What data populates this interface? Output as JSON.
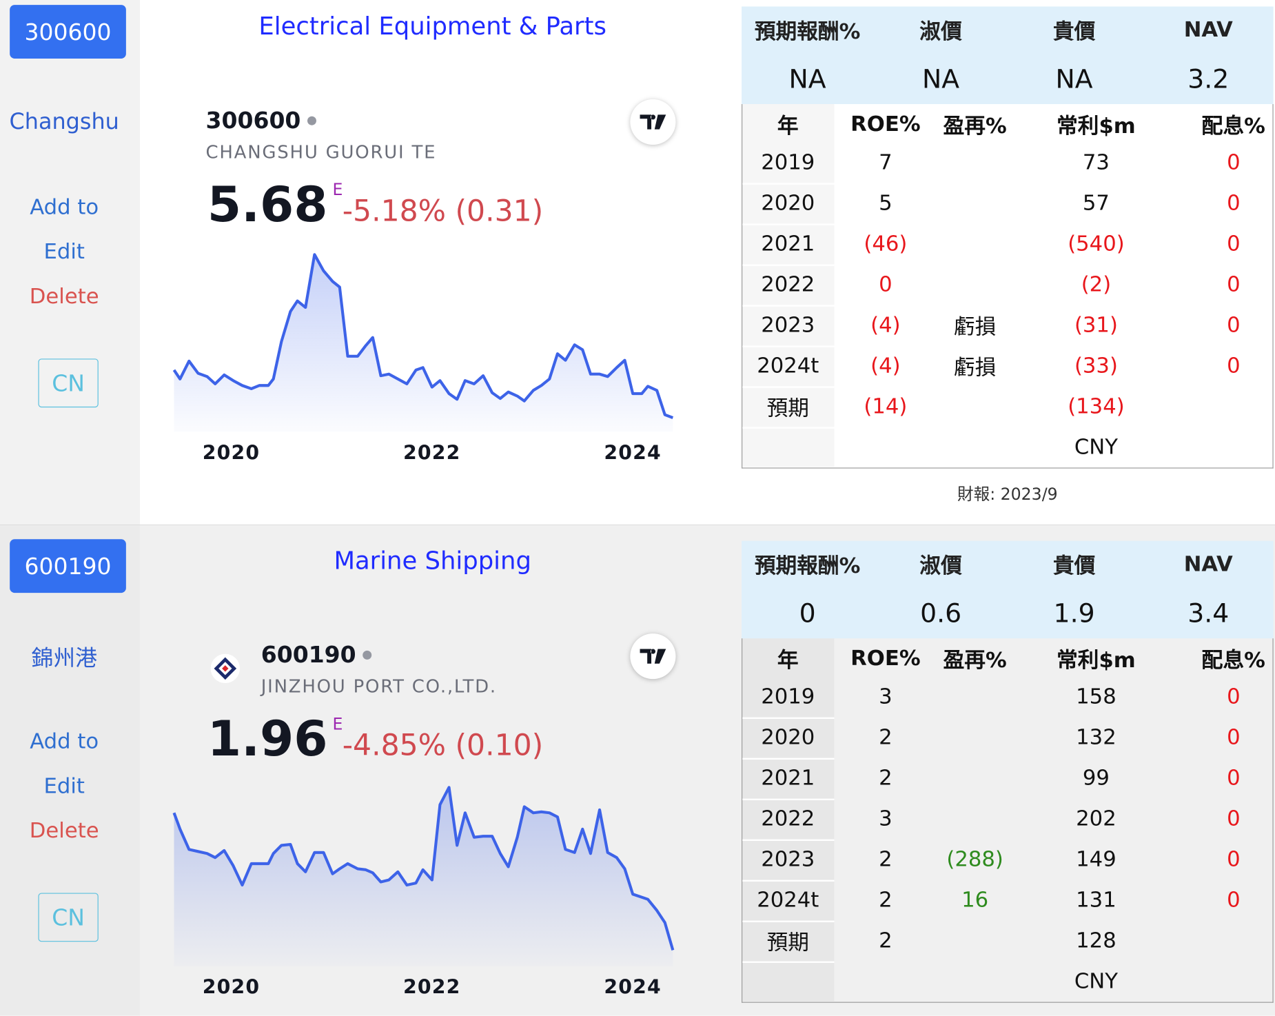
{
  "cards": [
    {
      "code": "300600",
      "name": "Changshu",
      "actions": [
        "Add to",
        "Edit",
        "Delete"
      ],
      "market": "CN",
      "industry": "Electrical Equipment & Parts",
      "symbol": "300600",
      "company": "CHANGSHU GUORUI TE",
      "price": "5.68",
      "price_flag": "E",
      "change": "-5.18% (0.31)",
      "chart": {
        "type": "line",
        "color": "#3d63e8",
        "xlim": [
          2019.43,
          2024.42
        ],
        "ylim": [
          5,
          18.5
        ],
        "xticks": [
          2020,
          2022,
          2024
        ],
        "x": [
          2019.43,
          2019.49,
          2019.58,
          2019.67,
          2019.76,
          2019.84,
          2019.93,
          2020.02,
          2020.11,
          2020.2,
          2020.28,
          2020.37,
          2020.42,
          2020.5,
          2020.59,
          2020.66,
          2020.74,
          2020.83,
          2020.92,
          2021.01,
          2021.08,
          2021.16,
          2021.26,
          2021.34,
          2021.41,
          2021.49,
          2021.57,
          2021.66,
          2021.75,
          2021.84,
          2021.91,
          2022,
          2022.08,
          2022.17,
          2022.25,
          2022.33,
          2022.42,
          2022.51,
          2022.6,
          2022.68,
          2022.76,
          2022.85,
          2022.92,
          2023.01,
          2023.09,
          2023.17,
          2023.25,
          2023.33,
          2023.42,
          2023.5,
          2023.58,
          2023.67,
          2023.75,
          2023.84,
          2023.92,
          2024,
          2024.09,
          2024.15,
          2024.24,
          2024.32,
          2024.4
        ],
        "values": [
          9.2,
          8.54,
          9.86,
          8.96,
          8.72,
          8.18,
          8.84,
          8.42,
          8.06,
          7.82,
          8.06,
          8.06,
          8.54,
          11.3,
          13.52,
          14.3,
          13.82,
          17.72,
          16.52,
          15.74,
          15.32,
          10.22,
          10.22,
          11,
          11.6,
          8.78,
          8.9,
          8.54,
          8.18,
          9.2,
          9.38,
          7.94,
          8.42,
          7.46,
          7.04,
          8.42,
          8.18,
          8.78,
          7.52,
          7.1,
          7.58,
          7.28,
          6.92,
          7.7,
          8.06,
          8.54,
          10.4,
          9.92,
          11.06,
          10.7,
          8.9,
          8.9,
          8.72,
          9.38,
          9.92,
          7.46,
          7.46,
          8,
          7.7,
          5.9,
          5.68
        ]
      },
      "summary": {
        "headers": [
          "預期報酬%",
          "淑價",
          "貴價",
          "NAV"
        ],
        "values": [
          "NA",
          "NA",
          "NA",
          "3.2"
        ]
      },
      "table": {
        "headers": [
          "年",
          "ROE%",
          "盈再%",
          "常利$m",
          "配息%"
        ],
        "rows": [
          [
            "2019",
            "7",
            null,
            "73",
            "0"
          ],
          [
            "2020",
            "5",
            null,
            "57",
            "0"
          ],
          [
            "2021",
            "(46)",
            null,
            "(540)",
            "0"
          ],
          [
            "2022",
            "0",
            null,
            "(2)",
            "0"
          ],
          [
            "2023",
            "(4)",
            "虧損",
            "(31)",
            "0"
          ],
          [
            "2024t",
            "(4)",
            "虧損",
            "(33)",
            "0"
          ],
          [
            "預期",
            "(14)",
            null,
            "(134)",
            null
          ],
          [
            null,
            null,
            null,
            "CNY",
            null
          ]
        ],
        "colors": [
          [
            null,
            null,
            null,
            null,
            "#e8161b"
          ],
          [
            null,
            null,
            null,
            null,
            "#e8161b"
          ],
          [
            null,
            "#e8161b",
            null,
            "#e8161b",
            "#e8161b"
          ],
          [
            null,
            "#e8161b",
            null,
            "#e8161b",
            "#e8161b"
          ],
          [
            null,
            "#e8161b",
            null,
            "#e8161b",
            "#e8161b"
          ],
          [
            null,
            "#e8161b",
            null,
            "#e8161b",
            "#e8161b"
          ],
          [
            null,
            "#e8161b",
            null,
            "#e8161b",
            null
          ],
          [
            null,
            null,
            null,
            null,
            null
          ]
        ]
      },
      "footnote": "財報: 2023/9"
    },
    {
      "code": "600190",
      "name": "錦州港",
      "actions": [
        "Add to",
        "Edit",
        "Delete"
      ],
      "market": "CN",
      "industry": "Marine Shipping",
      "symbol": "600190",
      "company": "JINZHOU PORT CO.,LTD.",
      "price": "1.96",
      "price_flag": "E",
      "change": "-4.85% (0.10)",
      "chart": {
        "type": "line",
        "color": "#3d63e8",
        "xlim": [
          2019.43,
          2024.42
        ],
        "ylim": [
          1.85,
          3.65
        ],
        "xticks": [
          2020,
          2022,
          2024
        ],
        "x": [
          2019.43,
          2019.49,
          2019.58,
          2019.67,
          2019.76,
          2019.84,
          2019.93,
          2020.02,
          2020.11,
          2020.2,
          2020.28,
          2020.37,
          2020.42,
          2020.5,
          2020.59,
          2020.66,
          2020.74,
          2020.83,
          2020.92,
          2021.01,
          2021.08,
          2021.16,
          2021.26,
          2021.34,
          2021.41,
          2021.49,
          2021.57,
          2021.66,
          2021.75,
          2021.84,
          2021.91,
          2022,
          2022.08,
          2022.17,
          2022.25,
          2022.33,
          2022.42,
          2022.51,
          2022.6,
          2022.68,
          2022.76,
          2022.85,
          2022.92,
          2023.01,
          2023.09,
          2023.17,
          2023.25,
          2023.33,
          2023.42,
          2023.5,
          2023.58,
          2023.67,
          2023.75,
          2023.84,
          2023.92,
          2024,
          2024.09,
          2024.15,
          2024.24,
          2024.32,
          2024.4
        ],
        "values": [
          3.31,
          3.15,
          2.95,
          2.93,
          2.91,
          2.87,
          2.94,
          2.79,
          2.6,
          2.81,
          2.81,
          2.81,
          2.91,
          2.99,
          3,
          2.81,
          2.73,
          2.92,
          2.92,
          2.71,
          2.76,
          2.81,
          2.76,
          2.75,
          2.72,
          2.63,
          2.65,
          2.73,
          2.6,
          2.62,
          2.75,
          2.65,
          3.39,
          3.56,
          2.99,
          3.31,
          3.07,
          3.08,
          3.08,
          2.91,
          2.78,
          3.07,
          3.37,
          3.31,
          3.32,
          3.31,
          3.27,
          2.95,
          2.92,
          3.15,
          2.91,
          3.34,
          2.92,
          2.87,
          2.76,
          2.51,
          2.48,
          2.46,
          2.35,
          2.23,
          1.96
        ]
      },
      "summary": {
        "headers": [
          "預期報酬%",
          "淑價",
          "貴價",
          "NAV"
        ],
        "values": [
          "0",
          "0.6",
          "1.9",
          "3.4"
        ]
      },
      "table": {
        "headers": [
          "年",
          "ROE%",
          "盈再%",
          "常利$m",
          "配息%"
        ],
        "rows": [
          [
            "2019",
            "3",
            null,
            "158",
            "0"
          ],
          [
            "2020",
            "2",
            null,
            "132",
            "0"
          ],
          [
            "2021",
            "2",
            null,
            "99",
            "0"
          ],
          [
            "2022",
            "3",
            null,
            "202",
            "0"
          ],
          [
            "2023",
            "2",
            "(288)",
            "149",
            "0"
          ],
          [
            "2024t",
            "2",
            "16",
            "131",
            "0"
          ],
          [
            "預期",
            "2",
            null,
            "128",
            null
          ],
          [
            null,
            null,
            null,
            "CNY",
            null
          ]
        ],
        "colors": [
          [
            null,
            null,
            null,
            null,
            "#e8161b"
          ],
          [
            null,
            null,
            null,
            null,
            "#e8161b"
          ],
          [
            null,
            null,
            null,
            null,
            "#e8161b"
          ],
          [
            null,
            null,
            null,
            null,
            "#e8161b"
          ],
          [
            null,
            null,
            "#2e8b1e",
            null,
            "#e8161b"
          ],
          [
            null,
            null,
            "#2e8b1e",
            null,
            "#e8161b"
          ],
          [
            null,
            null,
            null,
            null,
            null
          ],
          [
            null,
            null,
            null,
            null,
            null
          ]
        ]
      }
    }
  ]
}
